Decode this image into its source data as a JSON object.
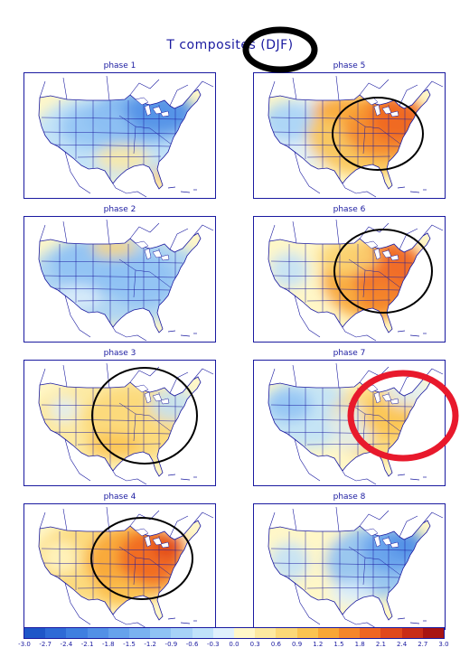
{
  "title": "T composites (DJF)",
  "panels": [
    {
      "label": "phase 1",
      "scheme": "cool_north"
    },
    {
      "label": "phase 5",
      "scheme": "warm_east"
    },
    {
      "label": "phase 2",
      "scheme": "cool_all"
    },
    {
      "label": "phase 6",
      "scheme": "warm_east_strong"
    },
    {
      "label": "phase 3",
      "scheme": "mild_warm"
    },
    {
      "label": "phase 7",
      "scheme": "warm_east_mild"
    },
    {
      "label": "phase 4",
      "scheme": "warm_central"
    },
    {
      "label": "phase 8",
      "scheme": "cool_east"
    }
  ],
  "colorbar": {
    "labels": [
      "-3.0",
      "-2.7",
      "-2.4",
      "-2.1",
      "-1.8",
      "-1.5",
      "-1.2",
      "-0.9",
      "-0.6",
      "-0.3",
      "0.0",
      "0.3",
      "0.6",
      "0.9",
      "1.2",
      "1.5",
      "1.8",
      "2.1",
      "2.4",
      "2.7",
      "3.0"
    ],
    "colors": [
      "#1e56c8",
      "#2e6ad6",
      "#3f7fe0",
      "#5290e6",
      "#66a2ec",
      "#7ab2f0",
      "#8fc2f4",
      "#a6d2f7",
      "#bfe2fa",
      "#dff0fc",
      "#fff7c8",
      "#fde9a0",
      "#fcd878",
      "#fbc351",
      "#f9a636",
      "#f5862a",
      "#ef6622",
      "#e0481c",
      "#c92c17",
      "#a81412"
    ],
    "accent": "#1a1aa0"
  },
  "annotations": {
    "black_circle_color": "#000000",
    "red_circle_color": "#e8192c"
  }
}
